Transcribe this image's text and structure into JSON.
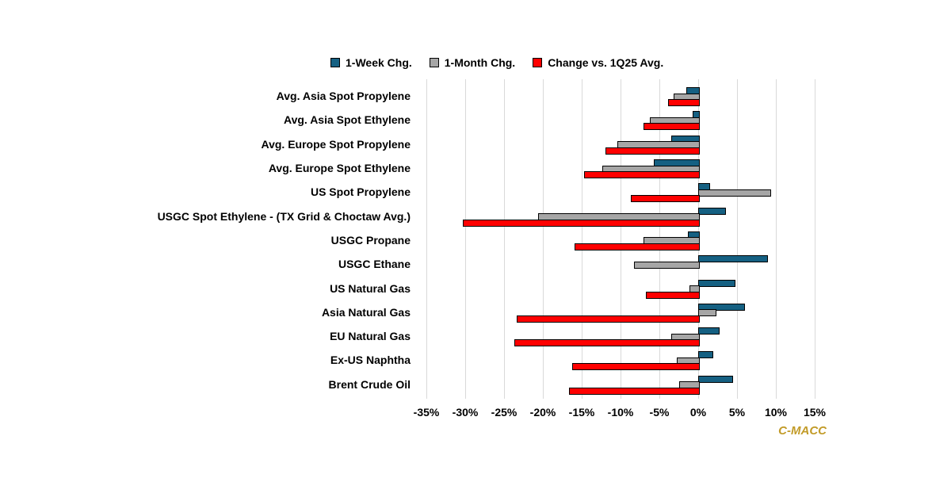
{
  "legend": {
    "items": [
      {
        "label": "1-Week Chg.",
        "color": "#156082"
      },
      {
        "label": "1-Month Chg.",
        "color": "#a6a6a6"
      },
      {
        "label": "Change vs. 1Q25 Avg.",
        "color": "#ff0000"
      }
    ]
  },
  "brand": {
    "label": "C-MACC",
    "color": "#c29b28"
  },
  "chart_data": {
    "type": "bar",
    "orientation": "horizontal",
    "title": "",
    "xlabel": "",
    "ylabel": "",
    "xlim": [
      -35,
      15
    ],
    "x_tick_labels": [
      "-35%",
      "-30%",
      "-25%",
      "-20%",
      "-15%",
      "-10%",
      "-5%",
      "0%",
      "5%",
      "10%",
      "15%"
    ],
    "x_tick_values": [
      -35,
      -30,
      -25,
      -20,
      -15,
      -10,
      -5,
      0,
      5,
      10,
      15
    ],
    "grid": true,
    "legend_position": "top",
    "categories": [
      "Avg. Asia Spot Propylene",
      "Avg. Asia Spot Ethylene",
      "Avg. Europe Spot Propylene",
      "Avg. Europe Spot Ethylene",
      "US Spot Propylene",
      "USGC Spot Ethylene - (TX Grid & Choctaw Avg.)",
      "USGC Propane",
      "USGC Ethane",
      "US Natural Gas",
      "Asia Natural Gas",
      "EU Natural Gas",
      "Ex-US Naphtha",
      "Brent Crude Oil"
    ],
    "series": [
      {
        "name": "1-Week Chg.",
        "color": "#156082",
        "values": [
          -1.5,
          -0.7,
          -3.5,
          -5.7,
          1.3,
          3.4,
          -1.3,
          8.8,
          4.6,
          5.8,
          2.5,
          1.7,
          4.3
        ]
      },
      {
        "name": "1-Month Chg.",
        "color": "#a6a6a6",
        "values": [
          -3.2,
          -6.2,
          -10.4,
          -12.3,
          9.2,
          -20.6,
          -7.0,
          -8.3,
          -1.1,
          2.1,
          -3.5,
          -2.8,
          -2.4
        ]
      },
      {
        "name": "Change vs. 1Q25 Avg.",
        "color": "#ff0000",
        "values": [
          -3.9,
          -7.0,
          -11.9,
          -14.7,
          -8.7,
          -30.3,
          -15.9,
          0.0,
          -6.7,
          -23.4,
          -23.7,
          -16.2,
          -16.6
        ]
      }
    ]
  }
}
